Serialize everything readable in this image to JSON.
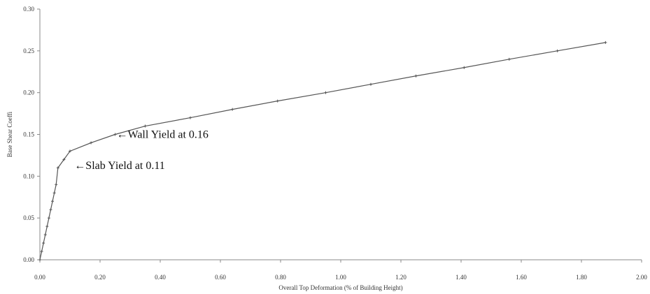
{
  "chart_data": {
    "type": "line",
    "title": "",
    "xlabel": "Overall Top Deformation (% of Building Height)",
    "ylabel": "Base Shear Coeffi",
    "xlim": [
      0,
      2.0
    ],
    "ylim": [
      0,
      0.3
    ],
    "x_ticks": [
      "0.00",
      "0.20",
      "0.40",
      "0.60",
      "0.80",
      "1.00",
      "1.20",
      "1.40",
      "1.60",
      "1.80",
      "2.00"
    ],
    "y_ticks": [
      "0.00",
      "0.05",
      "0.10",
      "0.15",
      "0.20",
      "0.25",
      "0.30"
    ],
    "grid": false,
    "series": [
      {
        "x": [
          0.0,
          0.006,
          0.012,
          0.018,
          0.024,
          0.03,
          0.036,
          0.042,
          0.048,
          0.054,
          0.06,
          0.08,
          0.1,
          0.17,
          0.25,
          0.35,
          0.5,
          0.64,
          0.79,
          0.95,
          1.1,
          1.25,
          1.41,
          1.56,
          1.72,
          1.88
        ],
        "y": [
          0.0,
          0.01,
          0.02,
          0.03,
          0.04,
          0.05,
          0.06,
          0.07,
          0.08,
          0.09,
          0.11,
          0.12,
          0.13,
          0.14,
          0.15,
          0.16,
          0.17,
          0.18,
          0.19,
          0.2,
          0.21,
          0.22,
          0.23,
          0.24,
          0.25,
          0.26
        ],
        "color": "#555555"
      }
    ],
    "annotations": [
      {
        "text": "Wall Yield at 0.16",
        "arrow": "←",
        "x": 0.25,
        "y": 0.15
      },
      {
        "text": "Slab Yield at 0.11",
        "arrow": "←",
        "x": 0.11,
        "y": 0.113
      }
    ]
  }
}
